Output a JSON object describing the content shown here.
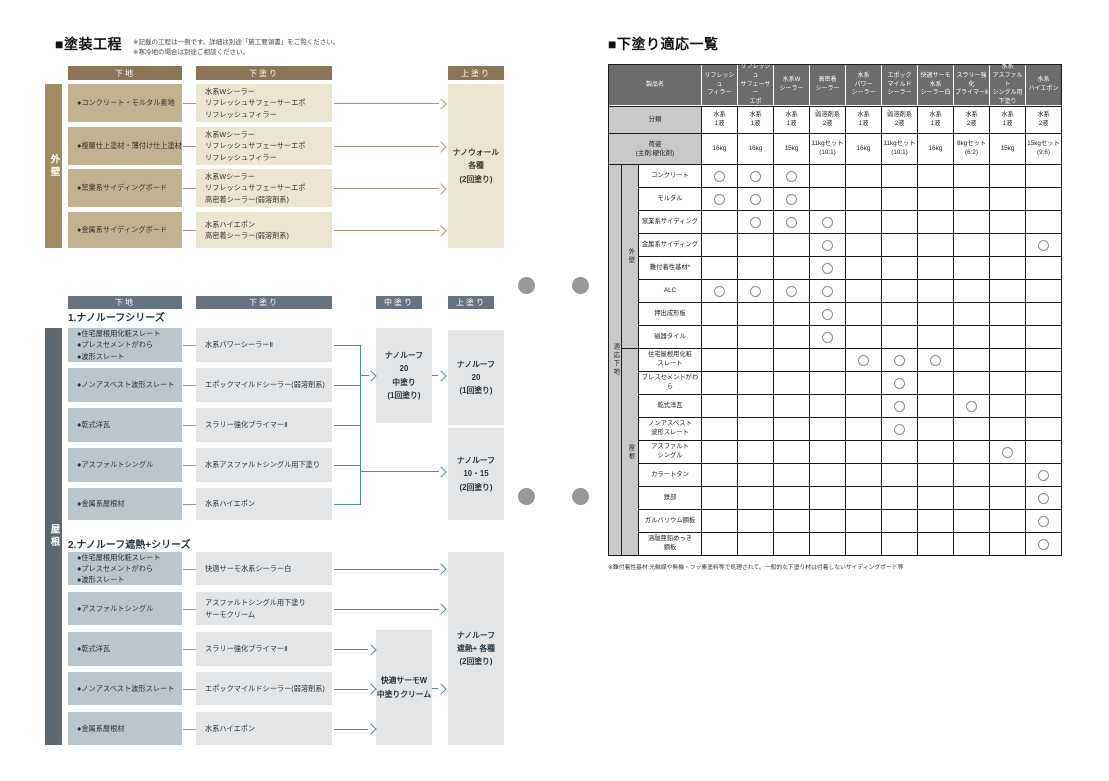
{
  "left": {
    "title": "■塗装工程",
    "note1": "※記載の工程は一例です。詳細は別途「施工要領書」をご覧ください。",
    "note2": "※寒冷地の場合は別途ご相談ください。"
  },
  "exterior": {
    "side_label": "外壁",
    "headers": {
      "substrate": "下地",
      "undercoat": "下塗り",
      "topcoat": "上塗り"
    },
    "rows": [
      {
        "substrate": "●コンクリート・モルタル素地",
        "undercoat": "水系Wシーラー\nリフレッシュサフェーサーエポ\nリフレッシュフィラー"
      },
      {
        "substrate": "●複層仕上塗材・薄付け仕上塗材",
        "undercoat": "水系Wシーラー\nリフレッシュサフェーサーエポ\nリフレッシュフィラー"
      },
      {
        "substrate": "●窯業系サイディングボード",
        "undercoat": "水系Wシーラー\nリフレッシュサフェーサーエポ\n高密着シーラー(弱溶剤系)"
      },
      {
        "substrate": "●金属系サイディングボード",
        "undercoat": "水系ハイエポン\n高密着シーラー(弱溶剤系)"
      }
    ],
    "topcoat": "ナノウォール\n各種\n(2回塗り)"
  },
  "roof": {
    "side_label": "屋根",
    "headers": {
      "substrate": "下地",
      "undercoat": "下塗り",
      "midcoat": "中塗り",
      "topcoat": "上塗り"
    },
    "series1": {
      "title": "1.ナノルーフシリーズ",
      "rows": [
        {
          "substrate": "●住宅屋根用化粧スレート\n●プレスセメントがわら\n●波形スレート",
          "undercoat": "水系パワーシーラーⅡ"
        },
        {
          "substrate": "●ノンアスベスト波形スレート",
          "undercoat": "エポックマイルドシーラー(弱溶剤系)"
        },
        {
          "substrate": "●乾式洋瓦",
          "undercoat": "スラリー強化プライマーⅡ"
        },
        {
          "substrate": "●アスファルトシングル",
          "undercoat": "水系アスファルトシングル用下塗り"
        },
        {
          "substrate": "●金属系屋根材",
          "undercoat": "水系ハイエポン"
        }
      ],
      "midcoat": "ナノルーフ\n20\n中塗り\n(1回塗り)",
      "topcoat1": "ナノルーフ\n20\n(1回塗り)",
      "topcoat2": "ナノルーフ\n10・15\n(2回塗り)"
    },
    "series2": {
      "title": "2.ナノルーフ遮熱+シリーズ",
      "rows": [
        {
          "substrate": "●住宅屋根用化粧スレート\n●プレスセメントがわら\n●波形スレート",
          "undercoat": "快適サーモ水系シーラー白"
        },
        {
          "substrate": "●アスファルトシングル",
          "undercoat": "アスファルトシングル用下塗り\nサーモクリーム"
        },
        {
          "substrate": "●乾式洋瓦",
          "undercoat": "スラリー強化プライマーⅡ"
        },
        {
          "substrate": "●ノンアスベスト波形スレート",
          "undercoat": "エポックマイルドシーラー(弱溶剤系)"
        },
        {
          "substrate": "●金属系屋根材",
          "undercoat": "水系ハイエポン"
        }
      ],
      "midcoat": "快適サーモW\n中塗りクリーム",
      "topcoat": "ナノルーフ\n遮熱+ 各種\n(2回塗り)"
    }
  },
  "table": {
    "title": "■下塗り適応一覧",
    "corner": "製品名",
    "products": [
      "リフレッシュ\nフィラー",
      "リフレッシュ\nサフェーサー\nエポ",
      "水系W\nシーラー",
      "高密着\nシーラー",
      "水系\nパワー\nシーラー",
      "エポック\nマイルド\nシーラー",
      "快適サーモ\n水系\nシーラー白",
      "スラリー強化\nプライマーⅡ",
      "水系\nアスファルト\nシングル用\n下塗り",
      "水系\nハイエポン"
    ],
    "class_label": "分類",
    "classes": [
      "水系\n1液",
      "水系\n1液",
      "水系\n1液",
      "弱溶剤系\n2液",
      "水系\n1液",
      "弱溶剤系\n2液",
      "水系\n1液",
      "水系\n2液",
      "水系\n1液",
      "水系\n2液"
    ],
    "pack_label": "荷姿\n(主剤:硬化剤)",
    "packs": [
      "16kg",
      "16kg",
      "15kg",
      "11kgセット\n(10:1)",
      "16kg",
      "11kgセット\n(10:1)",
      "16kg",
      "8kgセット\n(6:2)",
      "15kg",
      "15kgセット\n(9:6)"
    ],
    "group_label": "適応下地",
    "groups": [
      {
        "label": "外壁",
        "rows": [
          {
            "label": "コンクリート",
            "marks": [
              1,
              1,
              1,
              0,
              0,
              0,
              0,
              0,
              0,
              0
            ]
          },
          {
            "label": "モルタル",
            "marks": [
              1,
              1,
              1,
              0,
              0,
              0,
              0,
              0,
              0,
              0
            ]
          },
          {
            "label": "窯業系サイディング",
            "marks": [
              0,
              1,
              1,
              1,
              0,
              0,
              0,
              0,
              0,
              0
            ]
          },
          {
            "label": "金属系サイディング",
            "marks": [
              0,
              0,
              0,
              1,
              0,
              0,
              0,
              0,
              0,
              1
            ]
          },
          {
            "label": "難付着性基材*",
            "marks": [
              0,
              0,
              0,
              1,
              0,
              0,
              0,
              0,
              0,
              0
            ]
          },
          {
            "label": "ALC",
            "marks": [
              1,
              1,
              1,
              1,
              0,
              0,
              0,
              0,
              0,
              0
            ]
          },
          {
            "label": "押出成形板",
            "marks": [
              0,
              0,
              0,
              1,
              0,
              0,
              0,
              0,
              0,
              0
            ]
          },
          {
            "label": "磁器タイル",
            "marks": [
              0,
              0,
              0,
              1,
              0,
              0,
              0,
              0,
              0,
              0
            ]
          }
        ]
      },
      {
        "label": "屋根",
        "rows": [
          {
            "label": "住宅屋根用化粧\nスレート",
            "marks": [
              0,
              0,
              0,
              0,
              1,
              1,
              1,
              0,
              0,
              0
            ]
          },
          {
            "label": "プレスセメントがわら",
            "marks": [
              0,
              0,
              0,
              0,
              0,
              1,
              0,
              0,
              0,
              0
            ]
          },
          {
            "label": "乾式洋瓦",
            "marks": [
              0,
              0,
              0,
              0,
              0,
              1,
              0,
              1,
              0,
              0
            ]
          },
          {
            "label": "ノンアスベスト\n波形スレート",
            "marks": [
              0,
              0,
              0,
              0,
              0,
              1,
              0,
              0,
              0,
              0
            ]
          },
          {
            "label": "アスファルト\nシングル",
            "marks": [
              0,
              0,
              0,
              0,
              0,
              0,
              0,
              0,
              1,
              0
            ]
          },
          {
            "label": "カラートタン",
            "marks": [
              0,
              0,
              0,
              0,
              0,
              0,
              0,
              0,
              0,
              1
            ]
          },
          {
            "label": "鉄部",
            "marks": [
              0,
              0,
              0,
              0,
              0,
              0,
              0,
              0,
              0,
              1
            ]
          },
          {
            "label": "ガルバリウム鋼板",
            "marks": [
              0,
              0,
              0,
              0,
              0,
              0,
              0,
              0,
              0,
              1
            ]
          },
          {
            "label": "溶融亜鉛めっき\n鋼板",
            "marks": [
              0,
              0,
              0,
              0,
              0,
              0,
              0,
              0,
              0,
              1
            ]
          }
        ]
      }
    ],
    "note": "※難付着性基材:光触媒や無機・フッ素塗料等で処理されて、一般的な下塗り材は付着しないサイディングボード等"
  },
  "colors": {
    "ext_header": "#8b7557",
    "ext_sidebar": "#a18c61",
    "ext_substrate_box": "#c3b292",
    "ext_undercoat_box": "#ece5d1",
    "ext_arrow": "#ab9872",
    "roof_header": "#667380",
    "roof_sidebar": "#5b6871",
    "roof_substrate_box": "#b9c6cd",
    "roof_undercoat_box": "#e4e5e7",
    "roof_arrow": "#4e8aa0",
    "table_header_bg": "#6c6c6c",
    "table_label_bg": "#c9c9c9",
    "table_border": "#1a1a1a"
  }
}
